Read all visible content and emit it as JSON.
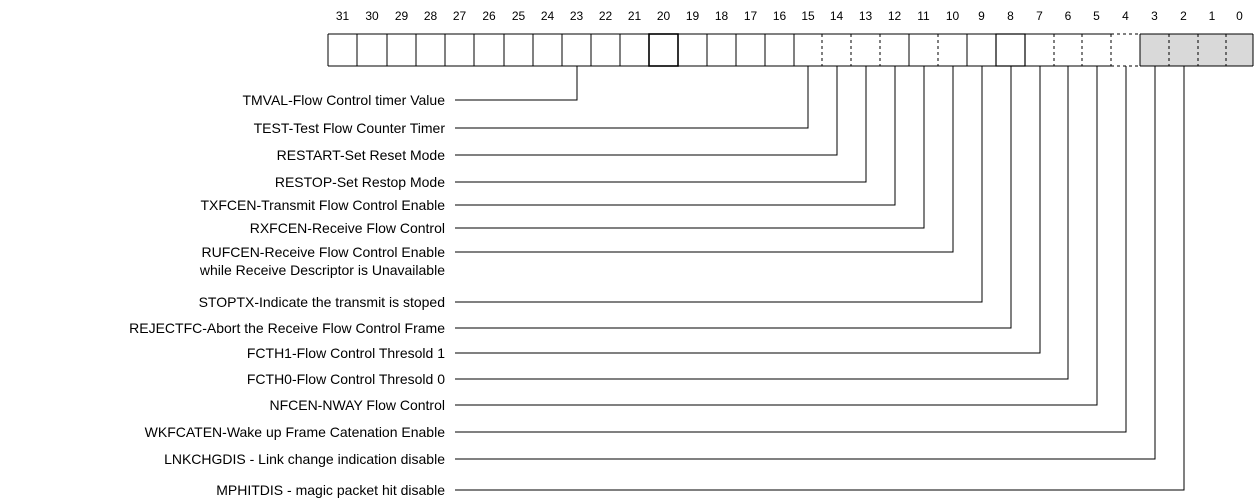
{
  "register": {
    "bit_numbers": [
      "31",
      "30",
      "29",
      "28",
      "27",
      "26",
      "25",
      "24",
      "23",
      "22",
      "21",
      "20",
      "19",
      "18",
      "17",
      "16",
      "15",
      "14",
      "13",
      "12",
      "11",
      "10",
      "9",
      "8",
      "7",
      "6",
      "5",
      "4",
      "3",
      "2",
      "1",
      "0"
    ],
    "reserved_fill": "#d9d9d9",
    "line_color": "#000000"
  },
  "fields": [
    {
      "lines": [
        "TMVAL-Flow Control timer Value"
      ],
      "bit": 23
    },
    {
      "lines": [
        "TEST-Test Flow Counter Timer"
      ],
      "bit": 15
    },
    {
      "lines": [
        "RESTART-Set Reset Mode"
      ],
      "bit": 14
    },
    {
      "lines": [
        "RESTOP-Set Restop Mode"
      ],
      "bit": 13
    },
    {
      "lines": [
        "TXFCEN-Transmit Flow Control Enable"
      ],
      "bit": 12
    },
    {
      "lines": [
        "RXFCEN-Receive Flow Control"
      ],
      "bit": 11
    },
    {
      "lines": [
        "RUFCEN-Receive Flow Control Enable",
        "while Receive Descriptor is Unavailable"
      ],
      "bit": 10
    },
    {
      "lines": [
        "STOPTX-Indicate the transmit is stoped"
      ],
      "bit": 9
    },
    {
      "lines": [
        "REJECTFC-Abort the Receive Flow Control Frame"
      ],
      "bit": 8
    },
    {
      "lines": [
        "FCTH1-Flow Control Thresold 1"
      ],
      "bit": 7
    },
    {
      "lines": [
        "FCTH0-Flow Control Thresold 0"
      ],
      "bit": 6
    },
    {
      "lines": [
        "NFCEN-NWAY Flow Control"
      ],
      "bit": 5
    },
    {
      "lines": [
        "WKFCATEN-Wake up Frame Catenation Enable"
      ],
      "bit": 4
    },
    {
      "lines": [
        "LNKCHGDIS - Link change indication disable"
      ],
      "bit": 3
    },
    {
      "lines": [
        "MPHITDIS - magic packet hit disable"
      ],
      "bit": 2
    }
  ]
}
